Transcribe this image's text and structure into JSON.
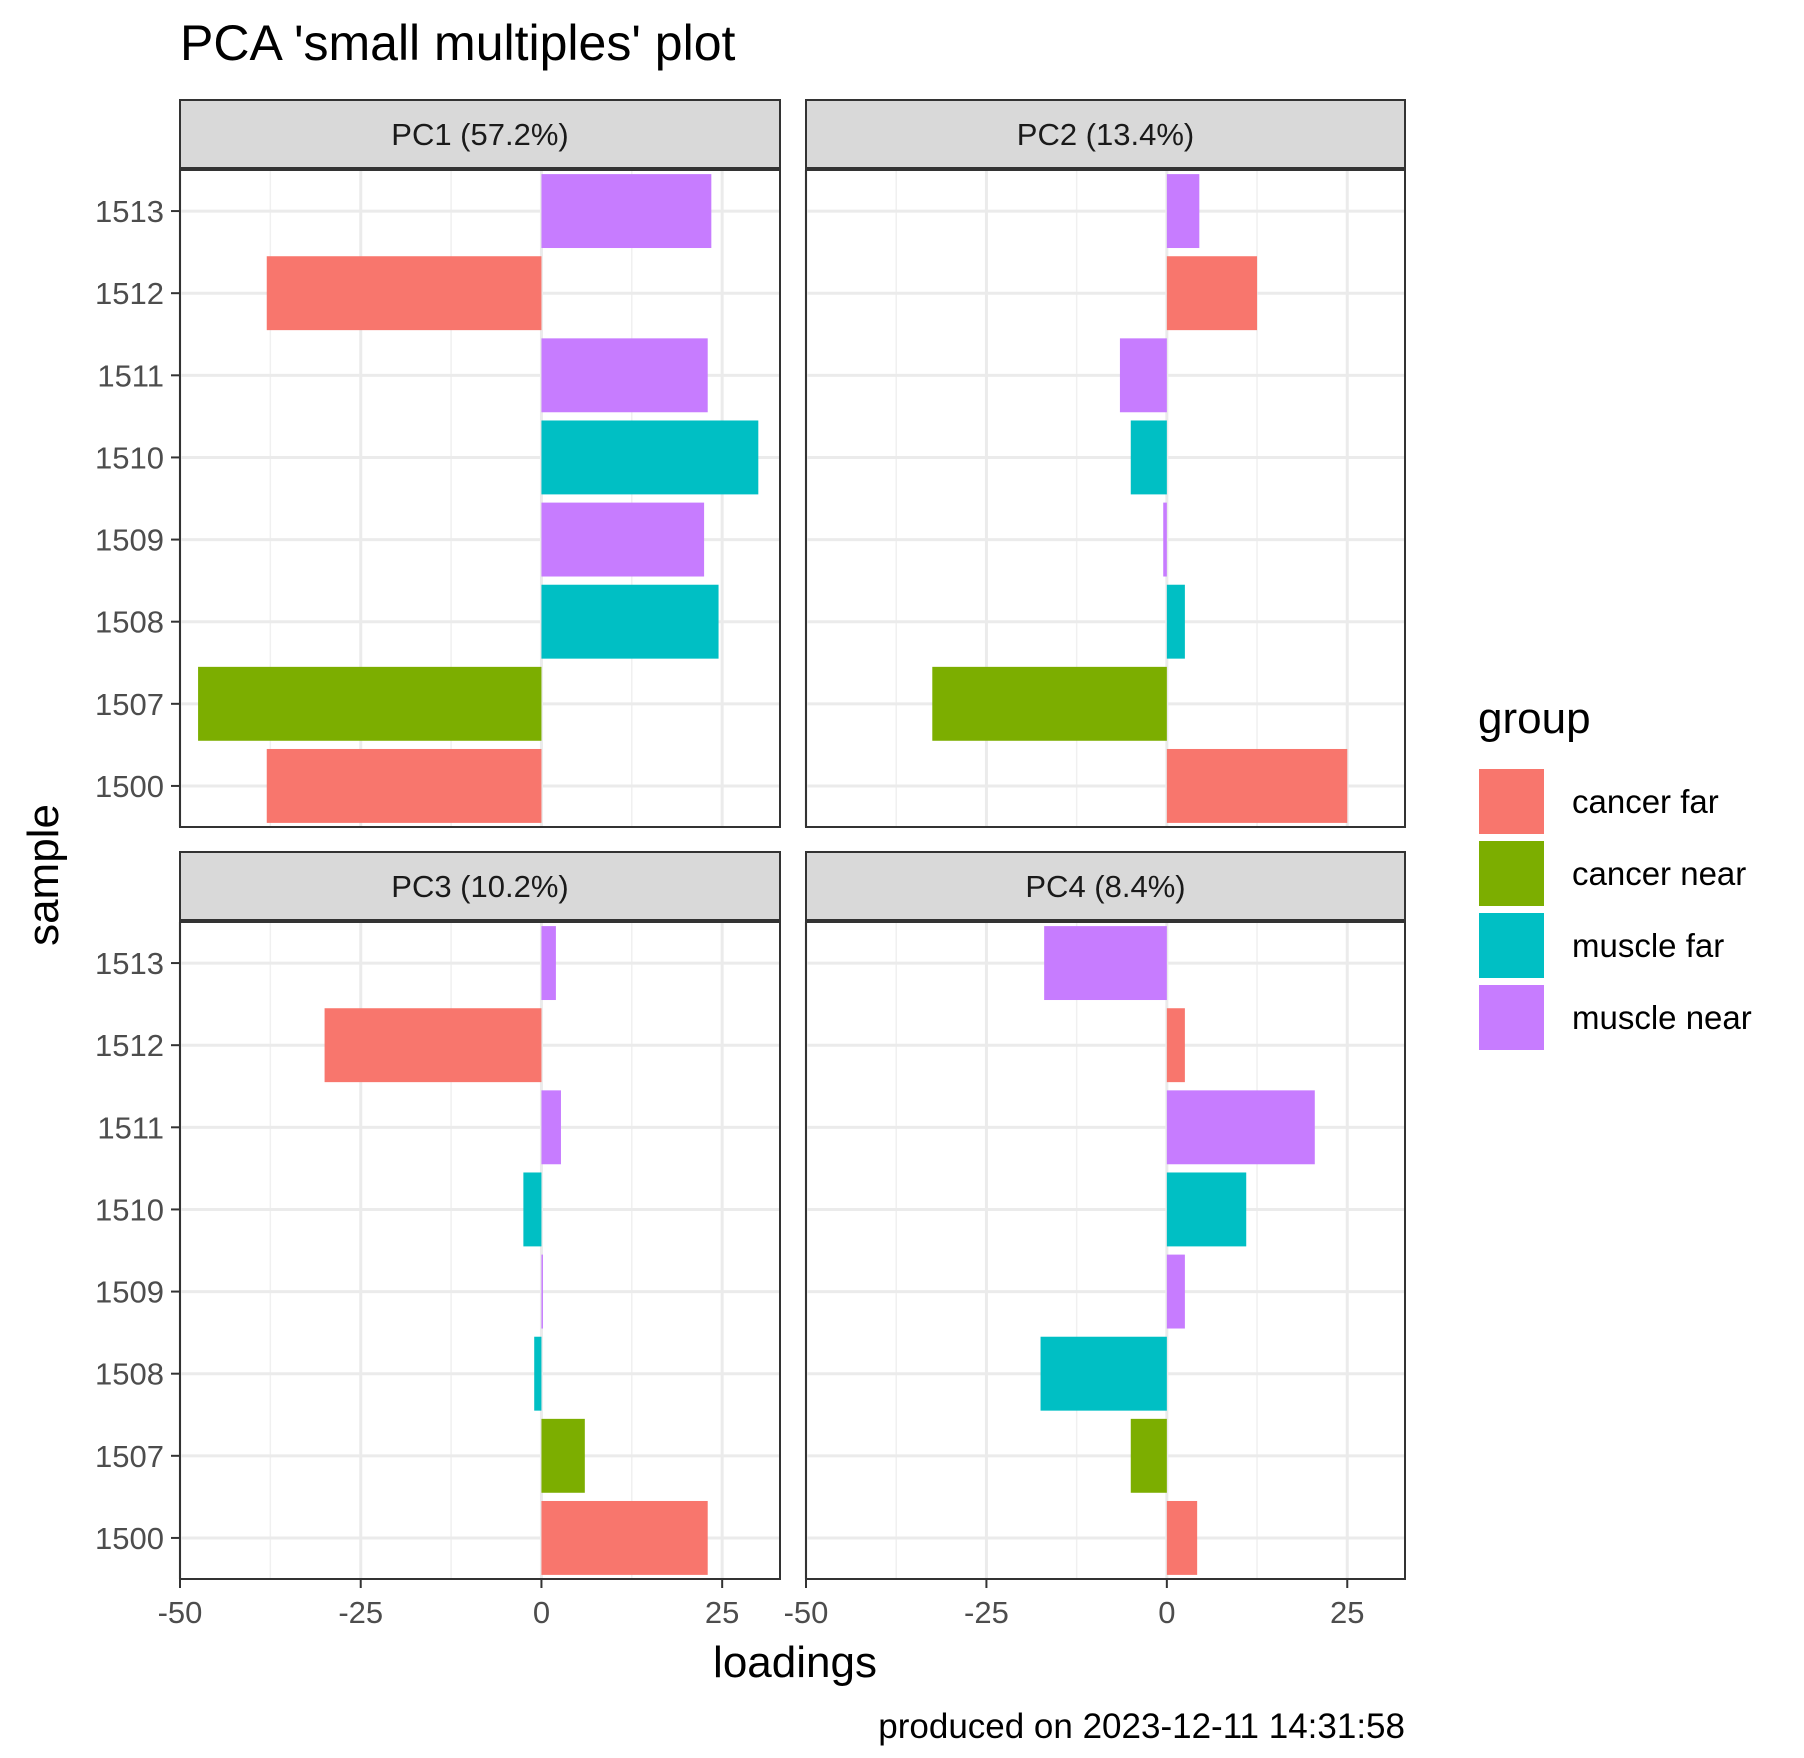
{
  "chart_data": {
    "type": "bar",
    "orientation": "horizontal",
    "title": "PCA 'small multiples' plot",
    "xlabel": "loadings",
    "ylabel": "sample",
    "caption": "produced on 2023-12-11 14:31:58",
    "xlim": [
      -50,
      33
    ],
    "x_ticks": [
      -50,
      -25,
      0,
      25
    ],
    "x_tick_labels": [
      "-50",
      "-25",
      "0",
      "25"
    ],
    "y_categories": [
      "1513",
      "1512",
      "1511",
      "1510",
      "1509",
      "1508",
      "1507",
      "1500"
    ],
    "grid": true,
    "legend": {
      "title": "group",
      "position": "right",
      "entries": [
        {
          "name": "cancer far",
          "color": "#F8766D"
        },
        {
          "name": "cancer near",
          "color": "#7CAE00"
        },
        {
          "name": "muscle far",
          "color": "#00BFC4"
        },
        {
          "name": "muscle near",
          "color": "#C77CFF"
        }
      ]
    },
    "sample_groups": [
      "muscle near",
      "cancer far",
      "muscle near",
      "muscle far",
      "muscle near",
      "muscle far",
      "cancer near",
      "cancer far"
    ],
    "panels": [
      {
        "label": "PC1 (57.2%)",
        "values": [
          23.5,
          -38,
          23,
          30,
          22.5,
          24.5,
          -47.5,
          -38
        ]
      },
      {
        "label": "PC2 (13.4%)",
        "values": [
          4.5,
          12.5,
          -6.5,
          -5,
          -0.5,
          2.5,
          -32.5,
          25
        ]
      },
      {
        "label": "PC3 (10.2%)",
        "values": [
          2,
          -30,
          2.7,
          -2.5,
          0,
          -1,
          6,
          23
        ]
      },
      {
        "label": "PC4 (8.4%)",
        "values": [
          -17,
          2.5,
          20.5,
          11,
          2.5,
          -17.5,
          -5,
          4.2
        ]
      }
    ]
  }
}
